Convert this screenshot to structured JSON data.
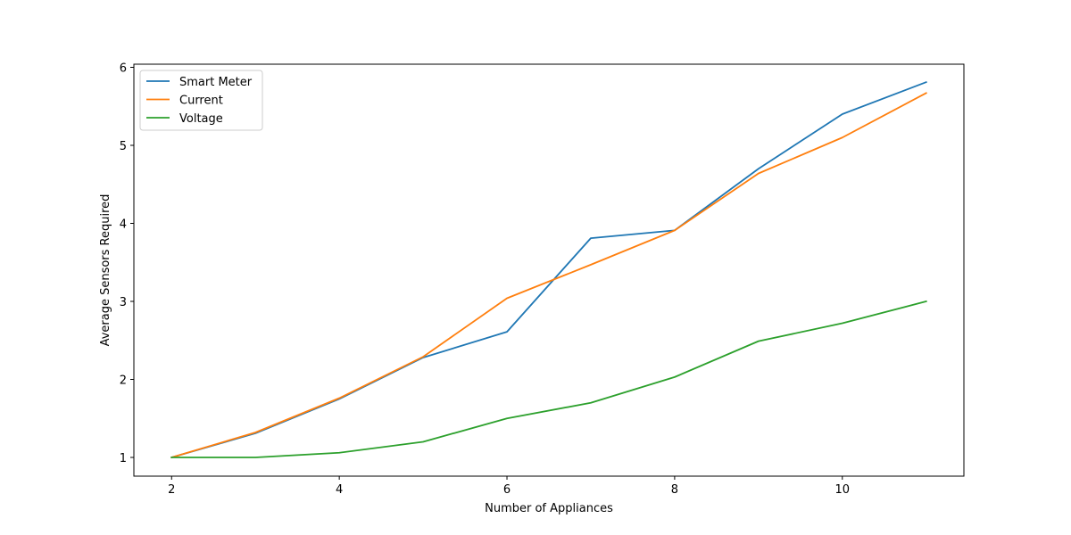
{
  "chart_data": {
    "type": "line",
    "title": "",
    "xlabel": "Number of Appliances",
    "ylabel": "Average Sensors Required",
    "x": [
      2,
      3,
      4,
      5,
      6,
      7,
      8,
      9,
      10,
      11
    ],
    "xlim": [
      1.55,
      11.45
    ],
    "ylim": [
      0.76,
      6.04
    ],
    "xticks": [
      2,
      4,
      6,
      8,
      10
    ],
    "yticks": [
      1,
      2,
      3,
      4,
      5,
      6
    ],
    "grid": false,
    "legend_position": "upper-left",
    "series": [
      {
        "name": "Smart Meter",
        "color": "#1f77b4",
        "values": [
          1.0,
          1.31,
          1.75,
          2.28,
          2.61,
          3.81,
          3.91,
          4.7,
          5.4,
          5.81
        ]
      },
      {
        "name": "Current",
        "color": "#ff7f0e",
        "values": [
          1.0,
          1.32,
          1.76,
          2.29,
          3.04,
          3.47,
          3.91,
          4.64,
          5.1,
          5.67
        ]
      },
      {
        "name": "Voltage",
        "color": "#2ca02c",
        "values": [
          1.0,
          1.0,
          1.06,
          1.2,
          1.5,
          1.7,
          2.03,
          2.49,
          2.72,
          3.0
        ]
      }
    ]
  }
}
